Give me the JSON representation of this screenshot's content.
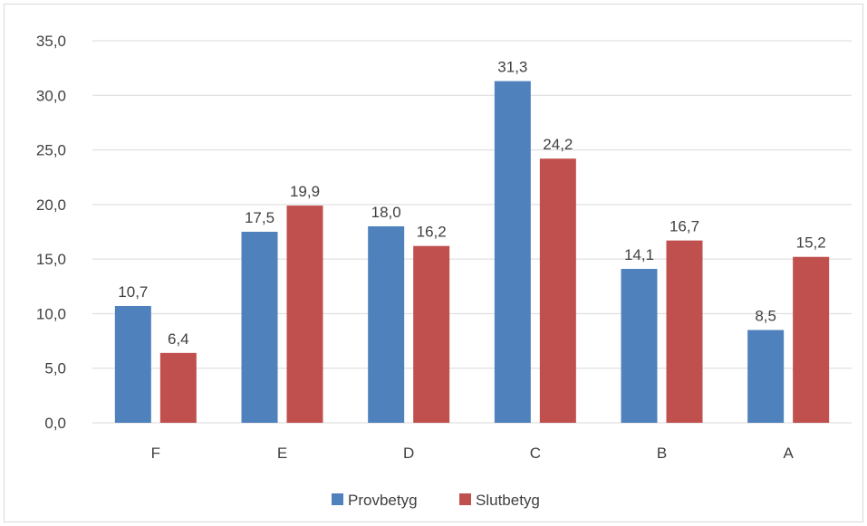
{
  "chart_data": {
    "type": "bar",
    "categories": [
      "F",
      "E",
      "D",
      "C",
      "B",
      "A"
    ],
    "series": [
      {
        "name": "Provbetyg",
        "values": [
          10.7,
          17.5,
          18.0,
          31.3,
          14.1,
          8.5
        ],
        "color": "#4f81bd"
      },
      {
        "name": "Slutbetyg",
        "values": [
          6.4,
          19.9,
          16.2,
          24.2,
          16.7,
          15.2
        ],
        "color": "#c0504d"
      }
    ],
    "data_labels": [
      [
        "10,7",
        "17,5",
        "18,0",
        "31,3",
        "14,1",
        "8,5"
      ],
      [
        "6,4",
        "19,9",
        "16,2",
        "24,2",
        "16,7",
        "15,2"
      ]
    ],
    "y_ticks": [
      "0,0",
      "5,0",
      "10,0",
      "15,0",
      "20,0",
      "25,0",
      "30,0",
      "35,0"
    ],
    "y_tick_values": [
      0,
      5,
      10,
      15,
      20,
      25,
      30,
      35
    ],
    "ylim": [
      0,
      35
    ],
    "grid": true,
    "legend_position": "bottom",
    "gridline_color": "#d9d9d9",
    "title": "",
    "xlabel": "",
    "ylabel": ""
  }
}
